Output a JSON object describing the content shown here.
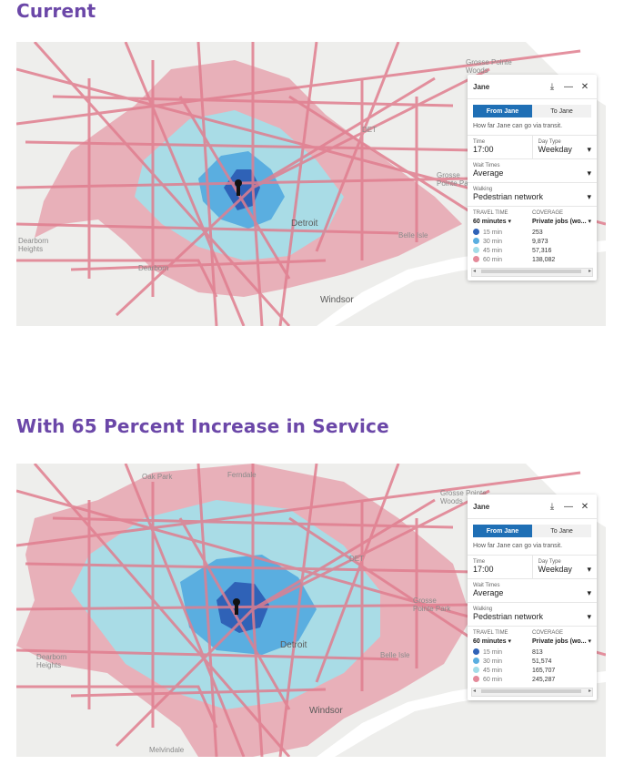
{
  "sections": [
    {
      "title": "Current",
      "map": {
        "labels": {
          "grosse_pointe_woods": "Grosse Pointe\nWoods",
          "det": "DET",
          "grosse_pointe_park": "Grosse\nPointe Park",
          "detroit": "Detroit",
          "dearborn_heights": "Dearborn\nHeights",
          "belle_isle": "Belle Isle",
          "windsor": "Windsor",
          "dearborn": "Dearborn"
        }
      },
      "panel": {
        "name": "Jane",
        "icons": {
          "download": "download-icon",
          "minimize": "minimize-icon",
          "close": "close-icon"
        },
        "tab_from": "From Jane",
        "tab_to": "To Jane",
        "description": "How far Jane can go via transit.",
        "time_label": "Time",
        "time_value": "17:00",
        "daytype_label": "Day Type",
        "daytype_value": "Weekday",
        "wait_label": "Wait Times",
        "wait_value": "Average",
        "walking_label": "Walking",
        "walking_value": "Pedestrian network",
        "travel_time_header": "TRAVEL TIME",
        "coverage_header": "COVERAGE",
        "travel_time_value": "60 minutes",
        "coverage_value": "Private jobs (wo...",
        "rows": [
          {
            "label": "15 min",
            "value": "253",
            "color": "#2f62b7"
          },
          {
            "label": "30 min",
            "value": "9,873",
            "color": "#5aaee0"
          },
          {
            "label": "45 min",
            "value": "57,316",
            "color": "#a3dde8"
          },
          {
            "label": "60 min",
            "value": "138,082",
            "color": "#e48a9a"
          }
        ]
      }
    },
    {
      "title": "With 65 Percent Increase in Service",
      "map": {
        "labels": {
          "oak_park": "Oak Park",
          "ferndale": "Ferndale",
          "grosse_pointe_woods": "Grosse Pointe\nWoods",
          "det": "DET",
          "grosse_pointe_park": "Grosse\nPointe Park",
          "detroit": "Detroit",
          "dearborn_heights": "Dearborn\nHeights",
          "belle_isle": "Belle Isle",
          "windsor": "Windsor",
          "melvindale": "Melvindale"
        }
      },
      "panel": {
        "name": "Jane",
        "icons": {
          "download": "download-icon",
          "minimize": "minimize-icon",
          "close": "close-icon"
        },
        "tab_from": "From Jane",
        "tab_to": "To Jane",
        "description": "How far Jane can go via transit.",
        "time_label": "Time",
        "time_value": "17:00",
        "daytype_label": "Day Type",
        "daytype_value": "Weekday",
        "wait_label": "Wait Times",
        "wait_value": "Average",
        "walking_label": "Walking",
        "walking_value": "Pedestrian network",
        "travel_time_header": "TRAVEL TIME",
        "coverage_header": "COVERAGE",
        "travel_time_value": "60 minutes",
        "coverage_value": "Private jobs (wo...",
        "rows": [
          {
            "label": "15 min",
            "value": "813",
            "color": "#2f62b7"
          },
          {
            "label": "30 min",
            "value": "51,574",
            "color": "#5aaee0"
          },
          {
            "label": "45 min",
            "value": "165,707",
            "color": "#a3dde8"
          },
          {
            "label": "60 min",
            "value": "245,287",
            "color": "#e48a9a"
          }
        ]
      }
    }
  ]
}
